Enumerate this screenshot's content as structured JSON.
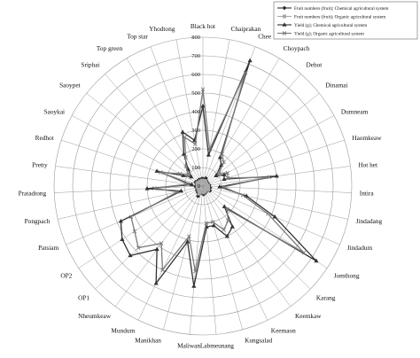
{
  "chart_data": {
    "type": "radar",
    "categories": [
      "Black hot",
      "Chaiprakan",
      "Chee",
      "Choypach",
      "Dehot",
      "Dinamai",
      "Dumneam",
      "Haomkeaw",
      "Hot het",
      "Intira",
      "Jindadang",
      "Jindadum",
      "Jomthong",
      "Karang",
      "Keemkaw",
      "Keemaon",
      "Kungsalad",
      "Labmeunang",
      "Maliwan",
      "Manikhan",
      "Mundum",
      "Nheumkeaw",
      "OP1",
      "OP2",
      "Patsiam",
      "Pongpach",
      "Pratadtong",
      "Pretty",
      "Redhot",
      "Saoykai",
      "Saoypet",
      "Sriphai",
      "Top green",
      "Top star",
      "Yhodtong"
    ],
    "rlim": [
      0,
      800
    ],
    "ticks": [
      0,
      100,
      200,
      300,
      400,
      500,
      600,
      700,
      800
    ],
    "grid": true,
    "legend_position": "top-right",
    "series": [
      {
        "name": "Fruit numbers (fruit); Chemical agricultural system",
        "color": "#2a2a2a",
        "marker": "diamond",
        "values": [
          40,
          30,
          45,
          35,
          25,
          30,
          30,
          28,
          35,
          30,
          40,
          35,
          45,
          35,
          30,
          35,
          40,
          45,
          40,
          35,
          60,
          45,
          40,
          38,
          30,
          35,
          40,
          30,
          35,
          45,
          40,
          35,
          40,
          35,
          40
        ]
      },
      {
        "name": "Fruit numbers (fruit); Organic agricultural system",
        "color": "#a8a8a8",
        "marker": "square",
        "values": [
          30,
          25,
          30,
          28,
          20,
          22,
          22,
          20,
          28,
          25,
          30,
          28,
          35,
          30,
          25,
          28,
          30,
          35,
          30,
          28,
          45,
          35,
          30,
          30,
          25,
          28,
          30,
          25,
          28,
          35,
          30,
          28,
          30,
          28,
          30
        ]
      },
      {
        "name": "Yield (g); Chemical agricultural system",
        "color": "#333333",
        "marker": "triangle",
        "values": [
          430,
          170,
          720,
          180,
          150,
          90,
          130,
          120,
          400,
          90,
          240,
          420,
          730,
          160,
          270,
          300,
          220,
          220,
          540,
          310,
          580,
          420,
          540,
          520,
          480,
          120,
          300,
          60,
          260,
          120,
          80,
          120,
          200,
          310,
          250
        ]
      },
      {
        "name": "Yield (g); Organic agricultural system",
        "color": "#7a7a7a",
        "marker": "x",
        "values": [
          520,
          200,
          650,
          200,
          170,
          110,
          150,
          140,
          360,
          110,
          220,
          380,
          650,
          180,
          230,
          260,
          200,
          200,
          460,
          280,
          500,
          380,
          480,
          440,
          420,
          140,
          260,
          80,
          240,
          140,
          100,
          140,
          180,
          280,
          230
        ]
      }
    ]
  }
}
